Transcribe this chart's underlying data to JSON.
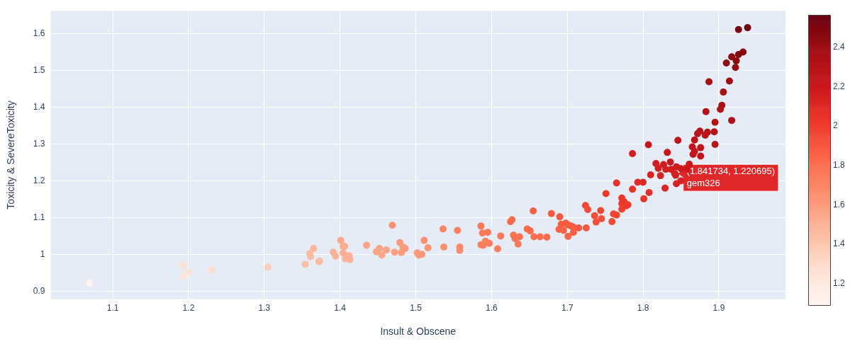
{
  "chart_data": {
    "type": "scatter",
    "xlabel": "Insult & Obscene",
    "ylabel": "Toxicity & SevereToxicity",
    "x": [
      1.069,
      1.193,
      1.193,
      1.2,
      1.231,
      1.305,
      1.354,
      1.36,
      1.361,
      1.365,
      1.372,
      1.373,
      1.391,
      1.394,
      1.401,
      1.404,
      1.406,
      1.404,
      1.41,
      1.412,
      1.407,
      1.413,
      1.435,
      1.448,
      1.452,
      1.455,
      1.461,
      1.469,
      1.472,
      1.479,
      1.481,
      1.483,
      1.486,
      1.502,
      1.504,
      1.508,
      1.511,
      1.516,
      1.536,
      1.537,
      1.555,
      1.558,
      1.558,
      1.586,
      1.588,
      1.595,
      1.586,
      1.589,
      1.592,
      1.597,
      1.608,
      1.612,
      1.625,
      1.627,
      1.629,
      1.631,
      1.637,
      1.635,
      1.647,
      1.651,
      1.655,
      1.656,
      1.664,
      1.673,
      1.679,
      1.69,
      1.692,
      1.689,
      1.695,
      1.698,
      1.701,
      1.705,
      1.708,
      1.701,
      1.708,
      1.715,
      1.724,
      1.727,
      1.725,
      1.736,
      1.738,
      1.744,
      1.745,
      1.751,
      1.759,
      1.761,
      1.765,
      1.765,
      1.772,
      1.772,
      1.772,
      1.775,
      1.778,
      1.78,
      1.786,
      1.786,
      1.793,
      1.8,
      1.801,
      1.807,
      1.808,
      1.81,
      1.817,
      1.82,
      1.823,
      1.827,
      1.83,
      1.832,
      1.836,
      1.837,
      1.829,
      1.844,
      1.843,
      1.841734,
      1.844,
      1.85,
      1.846,
      1.85,
      1.938,
      1.926,
      1.932,
      1.926,
      1.917,
      1.923,
      1.91,
      1.922,
      1.914,
      1.887,
      1.906,
      1.904,
      1.902,
      1.917,
      1.883,
      1.895,
      1.875,
      1.872,
      1.885,
      1.894,
      1.882,
      1.868,
      1.865,
      1.895,
      1.876,
      1.868,
      1.866,
      1.876,
      1.861,
      1.858
    ],
    "values": [
      0.923,
      0.972,
      0.941,
      0.952,
      0.958,
      0.966,
      0.974,
      1.003,
      0.995,
      1.017,
      0.981,
      0.983,
      1.007,
      0.996,
      1.039,
      1.023,
      1.023,
      1.005,
      0.997,
      0.997,
      0.989,
      0.987,
      1.026,
      1.008,
      1.017,
      0.999,
      1.013,
      1.08,
      1.007,
      1.033,
      1.006,
      1.021,
      1.017,
      1.005,
      0.999,
      1.001,
      1.039,
      1.019,
      1.07,
      1.021,
      1.066,
      1.021,
      1.012,
      1.078,
      1.059,
      1.061,
      1.027,
      1.026,
      1.037,
      1.031,
      1.016,
      1.051,
      1.09,
      1.095,
      1.053,
      1.044,
      1.049,
      1.029,
      1.07,
      1.065,
      1.119,
      1.049,
      1.049,
      1.048,
      1.112,
      1.103,
      1.083,
      1.069,
      1.066,
      1.086,
      1.081,
      1.078,
      1.075,
      1.05,
      1.061,
      1.073,
      1.134,
      1.123,
      1.073,
      1.106,
      1.089,
      1.12,
      1.098,
      1.166,
      1.09,
      1.111,
      1.108,
      1.195,
      1.154,
      1.139,
      1.124,
      1.144,
      1.133,
      1.136,
      1.275,
      1.178,
      1.197,
      1.197,
      1.152,
      1.299,
      1.169,
      1.217,
      1.248,
      1.235,
      1.215,
      1.245,
      1.232,
      1.278,
      1.252,
      1.232,
      1.181,
      1.239,
      1.216,
      1.220695,
      1.193,
      1.234,
      1.311,
      1.201,
      1.617,
      1.612,
      1.551,
      1.544,
      1.538,
      1.527,
      1.521,
      1.509,
      1.472,
      1.47,
      1.442,
      1.406,
      1.395,
      1.365,
      1.389,
      1.36,
      1.336,
      1.329,
      1.333,
      1.334,
      1.325,
      1.312,
      1.293,
      1.3,
      1.291,
      1.281,
      1.273,
      1.268,
      1.246,
      1.232
    ],
    "cvalues": [
      1.1,
      1.27,
      1.23,
      1.25,
      1.29,
      1.37,
      1.43,
      1.46,
      1.46,
      1.48,
      1.45,
      1.46,
      1.5,
      1.49,
      1.54,
      1.53,
      1.53,
      1.51,
      1.51,
      1.51,
      1.5,
      1.5,
      1.56,
      1.56,
      1.57,
      1.55,
      1.57,
      1.65,
      1.58,
      1.61,
      1.59,
      1.6,
      1.6,
      1.61,
      1.6,
      1.61,
      1.65,
      1.64,
      1.71,
      1.66,
      1.72,
      1.68,
      1.67,
      1.76,
      1.75,
      1.76,
      1.71,
      1.72,
      1.73,
      1.73,
      1.72,
      1.76,
      1.82,
      1.82,
      1.78,
      1.78,
      1.79,
      1.76,
      1.82,
      1.82,
      1.87,
      1.81,
      1.81,
      1.82,
      1.89,
      1.89,
      1.88,
      1.86,
      1.86,
      1.88,
      1.88,
      1.88,
      1.88,
      1.85,
      1.87,
      1.89,
      1.96,
      1.95,
      1.9,
      1.94,
      1.93,
      1.96,
      1.94,
      2.02,
      1.95,
      1.97,
      1.97,
      2.06,
      2.03,
      2.01,
      2.0,
      2.02,
      2.01,
      2.02,
      2.16,
      2.06,
      2.09,
      2.1,
      2.05,
      2.21,
      2.08,
      2.13,
      2.17,
      2.16,
      2.14,
      2.17,
      2.16,
      2.21,
      2.19,
      2.17,
      2.11,
      2.18,
      2.16,
      2.16,
      2.14,
      2.18,
      2.26,
      2.15,
      2.55,
      2.52,
      2.48,
      2.47,
      2.46,
      2.45,
      2.44,
      2.43,
      2.4,
      2.38,
      2.37,
      2.34,
      2.33,
      2.33,
      2.32,
      2.3,
      2.29,
      2.28,
      2.29,
      2.3,
      2.28,
      2.27,
      2.25,
      2.28,
      2.26,
      2.24,
      2.23,
      2.24,
      2.2,
      2.19
    ],
    "xlim": [
      1.018,
      1.988
    ],
    "xticks": [
      1.1,
      1.2,
      1.3,
      1.4,
      1.5,
      1.6,
      1.7,
      1.8,
      1.9
    ],
    "ylim": [
      0.879,
      1.663
    ],
    "yticks": [
      0.9,
      1,
      1.1,
      1.2,
      1.3,
      1.4,
      1.5,
      1.6
    ],
    "clim": [
      1.09,
      2.565
    ],
    "cticks": [
      1.2,
      1.4,
      1.6,
      1.8,
      2,
      2.2,
      2.4
    ],
    "annotations": [
      {
        "text": "(1.841734, 1.220695)\ngem326",
        "x": 1.841734,
        "y": 1.220695
      }
    ],
    "grid": true,
    "legend": false,
    "marker": "circle"
  }
}
